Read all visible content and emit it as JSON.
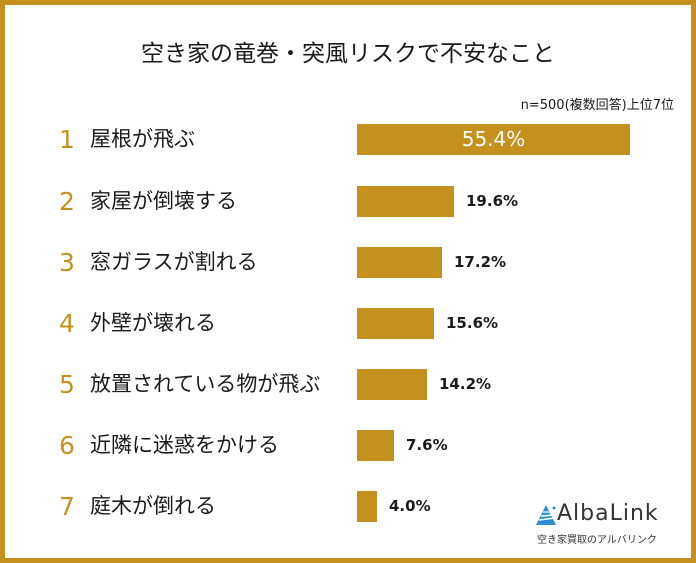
{
  "title": "空き家の竜巻・突風リスクで不安なこと",
  "note": "n=500(複数回答)上位7位",
  "colors": {
    "bar": "#c4911f",
    "border": "#c4911f",
    "rank": "#c4911f",
    "logo_blue": "#2a8fd6"
  },
  "items": [
    {
      "rank": "1",
      "label": "屋根が飛ぶ",
      "value": "55.4%"
    },
    {
      "rank": "2",
      "label": "家屋が倒壊する",
      "value": "19.6%"
    },
    {
      "rank": "3",
      "label": "窓ガラスが割れる",
      "value": "17.2%"
    },
    {
      "rank": "4",
      "label": "外壁が壊れる",
      "value": "15.6%"
    },
    {
      "rank": "5",
      "label": "放置されている物が飛ぶ",
      "value": "14.2%"
    },
    {
      "rank": "6",
      "label": "近隣に迷惑をかける",
      "value": "7.6%"
    },
    {
      "rank": "7",
      "label": "庭木が倒れる",
      "value": "4.0%"
    }
  ],
  "logo": {
    "name": "AlbaLink",
    "tagline": "空き家買取のアルバリンク"
  },
  "chart_data": {
    "type": "bar",
    "orientation": "horizontal",
    "title": "空き家の竜巻・突風リスクで不安なこと",
    "subtitle": "n=500(複数回答)上位7位",
    "categories": [
      "屋根が飛ぶ",
      "家屋が倒壊する",
      "窓ガラスが割れる",
      "外壁が壊れる",
      "放置されている物が飛ぶ",
      "近隣に迷惑をかける",
      "庭木が倒れる"
    ],
    "values": [
      55.4,
      19.6,
      17.2,
      15.6,
      14.2,
      7.6,
      4.0
    ],
    "unit": "%",
    "xlabel": "",
    "ylabel": "",
    "grid": false,
    "legend": null,
    "data_labels": true
  }
}
